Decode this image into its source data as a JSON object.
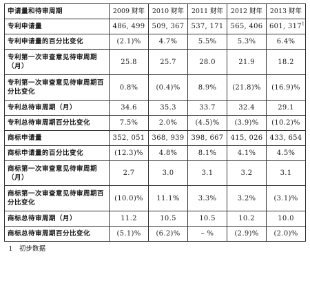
{
  "table": {
    "header": {
      "label": "申请量和待审周期",
      "years": [
        "2009 财年",
        "2010 财年",
        "2011 财年",
        "2012 财年",
        "2013 财年"
      ]
    },
    "rows": [
      {
        "label": "专利申请量",
        "values": [
          "486, 499",
          "509, 367",
          "537, 171",
          "565, 406",
          "601, 317"
        ],
        "last_sup": "1"
      },
      {
        "label": "专利申请量的百分比变化",
        "values": [
          "(2.1)%",
          "4.7%",
          "5.5%",
          "5.3%",
          "6.4%"
        ]
      },
      {
        "label": "专利第一次审查意见待审周期（月）",
        "values": [
          "25.8",
          "25.7",
          "28.0",
          "21.9",
          "18.2"
        ]
      },
      {
        "label": "专利第一次审查意见待审周期百分比变化",
        "values": [
          "0.8%",
          "(0.4)%",
          "8.9%",
          "(21.8)%",
          "(16.9)%"
        ]
      },
      {
        "label": "专利总待审周期（月）",
        "values": [
          "34.6",
          "35.3",
          "33.7",
          "32.4",
          "29.1"
        ]
      },
      {
        "label": "专利总待审周期百分比变化",
        "values": [
          "7.5%",
          "2.0%",
          "(4.5)%",
          "(3.9)%",
          "(10.2)%"
        ]
      },
      {
        "label": "商标申请量",
        "values": [
          "352, 051",
          "368, 939",
          "398, 667",
          "415, 026",
          "433, 654"
        ]
      },
      {
        "label": "商标申请量的百分比变化",
        "values": [
          "(12.3)%",
          "4.8%",
          "8.1%",
          "4.1%",
          "4.5%"
        ]
      },
      {
        "label": "商标第一次审查意见待审周期（月）",
        "values": [
          "2.7",
          "3.0",
          "3.1",
          "3.2",
          "3.1"
        ]
      },
      {
        "label": "商标第一次审查意见待审周期百分比变化",
        "values": [
          "(10.0)%",
          "11.1%",
          "3.3%",
          "3.2%",
          "(3.1)%"
        ]
      },
      {
        "label": "商标总待审周期（月）",
        "values": [
          "11.2",
          "10.5",
          "10.5",
          "10.2",
          "10.0"
        ]
      },
      {
        "label": "商标总待审周期百分比变化",
        "values": [
          "(5.1)%",
          "(6.2)%",
          "– %",
          "(2.9)%",
          "(2.0)%"
        ]
      }
    ],
    "footnote": "1　初步数据"
  }
}
